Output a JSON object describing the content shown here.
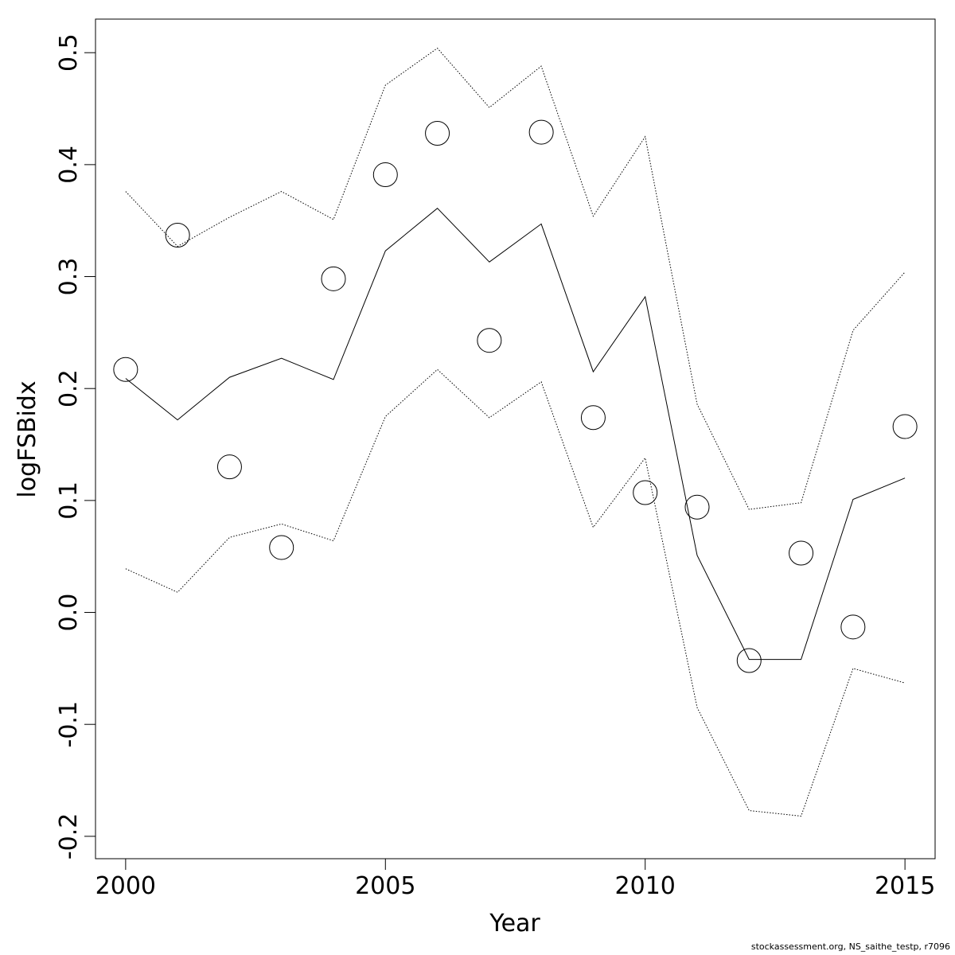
{
  "credit": "stockassessment.org, NS_saithe_testp, r7096",
  "chart_data": {
    "type": "line",
    "title": "",
    "xlabel": "Year",
    "ylabel": "logFSBidx",
    "xlim": [
      1999.42,
      2015.58
    ],
    "ylim": [
      -0.22,
      0.53
    ],
    "x_ticks": [
      2000,
      2005,
      2010,
      2015
    ],
    "y_ticks": [
      -0.2,
      -0.1,
      0.0,
      0.1,
      0.2,
      0.3,
      0.4,
      0.5
    ],
    "y_tick_labels": [
      "-0.2",
      "-0.1",
      "0.0",
      "0.1",
      "0.2",
      "0.3",
      "0.4",
      "0.5"
    ],
    "x_tick_labels": [
      "2000",
      "2005",
      "2010",
      "2015"
    ],
    "grid": false,
    "legend": "none",
    "x": [
      2000,
      2001,
      2002,
      2003,
      2004,
      2005,
      2006,
      2007,
      2008,
      2009,
      2010,
      2011,
      2012,
      2013,
      2014,
      2015
    ],
    "series": [
      {
        "role": "fitted",
        "style": "solid",
        "values": [
          0.209,
          0.172,
          0.21,
          0.227,
          0.208,
          0.323,
          0.361,
          0.313,
          0.347,
          0.215,
          0.282,
          0.051,
          -0.042,
          -0.042,
          0.101,
          0.12
        ]
      },
      {
        "role": "upper",
        "style": "dotted",
        "values": [
          0.376,
          0.327,
          0.353,
          0.376,
          0.351,
          0.471,
          0.504,
          0.451,
          0.488,
          0.354,
          0.425,
          0.186,
          0.092,
          0.098,
          0.252,
          0.304
        ]
      },
      {
        "role": "lower",
        "style": "dotted",
        "values": [
          0.039,
          0.018,
          0.067,
          0.079,
          0.064,
          0.175,
          0.217,
          0.174,
          0.206,
          0.076,
          0.138,
          -0.085,
          -0.177,
          -0.182,
          -0.05,
          -0.063
        ]
      },
      {
        "role": "observed",
        "style": "points",
        "values": [
          0.217,
          0.337,
          0.13,
          0.058,
          0.298,
          0.391,
          0.428,
          0.243,
          0.429,
          0.174,
          0.107,
          0.094,
          -0.043,
          0.053,
          -0.013,
          0.166
        ]
      }
    ]
  }
}
